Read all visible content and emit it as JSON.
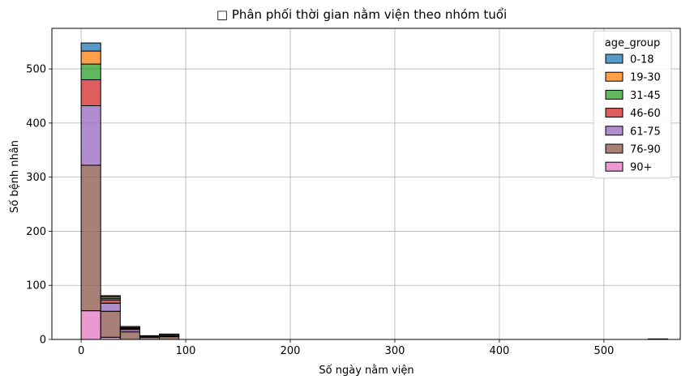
{
  "chart_data": {
    "type": "bar",
    "subtype": "stacked-histogram",
    "title": "□ Phân phối thời gian nằm viện theo nhóm tuổi",
    "xlabel": "Số ngày nằm viện",
    "ylabel": "Số bệnh nhân",
    "xlim": [
      -28,
      573
    ],
    "ylim": [
      0,
      575
    ],
    "xticks": [
      0,
      100,
      200,
      300,
      400,
      500
    ],
    "yticks": [
      0,
      100,
      200,
      300,
      400,
      500
    ],
    "grid": true,
    "legend": {
      "title": "age_group",
      "position": "top-right"
    },
    "bin_width": 18.7,
    "bin_starts": [
      0,
      18.7,
      37.4,
      56.1,
      74.8,
      93.5,
      112.2,
      130.9,
      149.6,
      168.3,
      187.0,
      205.7,
      224.4,
      243.1,
      261.8,
      280.5,
      299.2,
      317.9,
      336.6,
      355.3,
      374.0,
      392.7,
      411.4,
      430.1,
      448.8,
      467.5,
      486.2,
      504.9,
      523.6,
      542.3
    ],
    "series": [
      {
        "name": "90+",
        "color": "#e377c2",
        "values": [
          53,
          4,
          0,
          0,
          0,
          0,
          0,
          0,
          0,
          0,
          0,
          0,
          0,
          0,
          0,
          0,
          0,
          0,
          0,
          0,
          0,
          0,
          0,
          0,
          0,
          0,
          0,
          0,
          0,
          0
        ]
      },
      {
        "name": "76-90",
        "color": "#8c564b",
        "values": [
          269,
          48,
          14,
          4,
          5,
          0,
          0,
          0,
          0,
          0,
          0,
          0,
          0,
          0,
          0,
          0,
          0,
          0,
          0,
          0,
          0,
          0,
          0,
          0,
          0,
          0,
          0,
          0,
          0,
          1
        ]
      },
      {
        "name": "61-75",
        "color": "#9467bd",
        "values": [
          110,
          15,
          4,
          1,
          1,
          0,
          0,
          0,
          0,
          0,
          0,
          0,
          0,
          0,
          0,
          0,
          0,
          0,
          0,
          0,
          0,
          0,
          0,
          0,
          0,
          0,
          0,
          0,
          0,
          0
        ]
      },
      {
        "name": "46-60",
        "color": "#d62728",
        "values": [
          48,
          6,
          2,
          1,
          1,
          0,
          0,
          0,
          0,
          0,
          0,
          0,
          0,
          0,
          0,
          0,
          0,
          0,
          0,
          0,
          0,
          0,
          0,
          0,
          0,
          0,
          0,
          0,
          0,
          0
        ]
      },
      {
        "name": "31-45",
        "color": "#2ca02c",
        "values": [
          29,
          3,
          1,
          0,
          0,
          0,
          0,
          0,
          0,
          0,
          0,
          0,
          0,
          0,
          0,
          0,
          0,
          0,
          0,
          0,
          0,
          0,
          0,
          0,
          0,
          0,
          0,
          0,
          0,
          0
        ]
      },
      {
        "name": "19-30",
        "color": "#ff7f0e",
        "values": [
          24,
          3,
          1,
          0,
          2,
          0,
          0,
          0,
          0,
          0,
          0,
          0,
          0,
          0,
          0,
          0,
          0,
          0,
          0,
          0,
          0,
          0,
          0,
          0,
          0,
          0,
          0,
          0,
          0,
          0
        ]
      },
      {
        "name": "0-18",
        "color": "#1f77b4",
        "values": [
          15,
          2,
          2,
          1,
          1,
          0,
          0,
          0,
          0,
          0,
          0,
          0,
          0,
          0,
          0,
          0,
          0,
          0,
          0,
          0,
          0,
          0,
          0,
          0,
          0,
          0,
          0,
          0,
          0,
          0
        ]
      }
    ],
    "legend_order": [
      "0-18",
      "19-30",
      "31-45",
      "46-60",
      "61-75",
      "76-90",
      "90+"
    ]
  }
}
